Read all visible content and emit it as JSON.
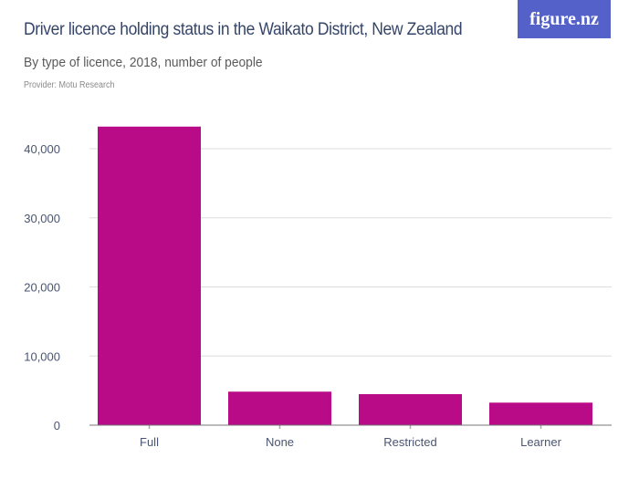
{
  "header": {
    "title": "Driver licence holding status in the Waikato District, New Zealand",
    "subtitle": "By type of licence, 2018, number of people",
    "provider": "Provider: Motu Research",
    "logo": "figure.nz"
  },
  "chart_data": {
    "type": "bar",
    "categories": [
      "Full",
      "None",
      "Restricted",
      "Learner"
    ],
    "values": [
      43200,
      4850,
      4490,
      3260
    ],
    "ylim": [
      0,
      45000
    ],
    "yticks": [
      0,
      10000,
      20000,
      30000,
      40000
    ],
    "ytick_labels": [
      "0",
      "10,000",
      "20,000",
      "30,000",
      "40,000"
    ],
    "grid": true,
    "color": "#b90a87"
  }
}
